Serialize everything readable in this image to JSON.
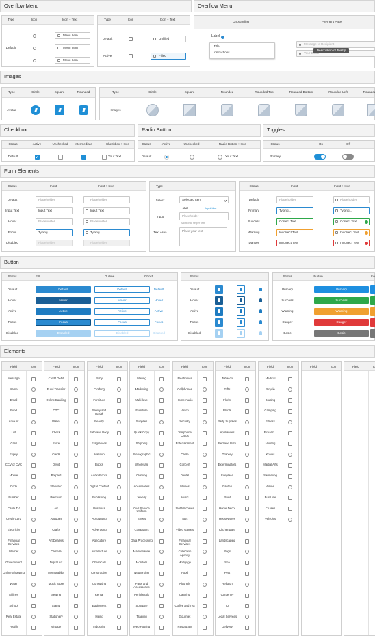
{
  "overflow_left": {
    "title": "Overflow Menu",
    "p1": {
      "headers": [
        "Type",
        "Icon",
        "Icon + Text"
      ],
      "row": "Default",
      "item": "Menu Item"
    },
    "p2": {
      "headers": [
        "Type",
        "Icon",
        "Icon + Text"
      ],
      "rows": [
        {
          "status": "Default",
          "text": "Unfilled"
        },
        {
          "status": "Active",
          "text": "Filled"
        }
      ]
    }
  },
  "overflow_right": {
    "title": "Overflow Menu",
    "headers": [
      "Onboarding",
      "Payment Page"
    ],
    "label": "Label",
    "menu": [
      "Title",
      "Instructions"
    ],
    "fields": [
      "Message to Recipient",
      "Your Email"
    ],
    "tooltip": "Description of Tooltip"
  },
  "images": {
    "title": "Images",
    "avatar": {
      "headers": [
        "Type",
        "Circle",
        "Square",
        "Rounded"
      ],
      "row": "Avatar"
    },
    "images": {
      "headers": [
        "Type",
        "Circle",
        "Square",
        "Rounded",
        "Rounded Top",
        "Rounded Bottom",
        "Rounded Left",
        "Rounded Right"
      ],
      "row": "Images"
    }
  },
  "checkbox": {
    "title": "Checkbox",
    "headers": [
      "Status",
      "Active",
      "Unchecked",
      "Intermediate",
      "Checkbox + Icon"
    ],
    "row": "Default",
    "text": "Your Text"
  },
  "radio": {
    "title": "Radio Button",
    "headers": [
      "Status",
      "Active",
      "Unchecked",
      "Radio Button + Icon"
    ],
    "row": "Default",
    "text": "Your Text"
  },
  "toggles": {
    "title": "Toggles",
    "headers": [
      "Status",
      "On",
      "Off"
    ],
    "row": "Primary"
  },
  "form": {
    "title": "Form Elements",
    "p1": {
      "headers": [
        "Status",
        "Input",
        "Input + Icon"
      ],
      "rows": [
        [
          "Default",
          "Placeholder"
        ],
        [
          "Input Text",
          "Input Text"
        ],
        [
          "Hover",
          "Placeholder"
        ],
        [
          "Focus",
          "Typing..."
        ],
        [
          "Disabled",
          "Placeholder"
        ]
      ]
    },
    "p2": {
      "header": "Type",
      "select": "Select",
      "selected": "Selected Item",
      "input": "Input",
      "label": "Label",
      "hint": "Input Hint",
      "placeholder": "Placeholder",
      "helper": "Additional helper text",
      "textarea": "Text Area",
      "textarea_ph": "Place your text"
    },
    "p3": {
      "headers": [
        "Status",
        "Input",
        "Input + Icon"
      ],
      "rows": [
        [
          "Default",
          "Placeholder"
        ],
        [
          "Primary",
          "Typing..."
        ],
        [
          "Success",
          "Correct Text"
        ],
        [
          "Warning",
          "Incorrect Text"
        ],
        [
          "Danger",
          "Incorrect Text"
        ]
      ]
    }
  },
  "button": {
    "title": "Button",
    "p1": {
      "headers": [
        "Status",
        "Fill",
        "Outline",
        "Ghost"
      ],
      "rows": [
        "Default",
        "Hover",
        "Active",
        "Focus",
        "Disabled"
      ]
    },
    "p2": {
      "header": "Status"
    },
    "p3": {
      "headers": [
        "Status",
        "Button",
        "Icon"
      ],
      "rows": [
        "Primary",
        "Success",
        "Warning",
        "Danger",
        "Basic"
      ]
    }
  },
  "elements": {
    "title": "Elements",
    "field_header": "Field",
    "icon_header": "Icon",
    "columns": [
      [
        "Message",
        "Name",
        "Email",
        "Fund",
        "Amount",
        "List",
        "Card",
        "Expiry",
        "CCV or CVC",
        "Mobile",
        "Code",
        "Number",
        "Cable TV",
        "Credit Card",
        "Electricity",
        "Financial Services",
        "Internet",
        "Government",
        "Online Shopping",
        "Water",
        "Airlines",
        "School",
        "Real Estate",
        "Health"
      ],
      [
        "Credit Debit",
        "Fund Transfer",
        "Online Banking",
        "OTC",
        "Wallet",
        "Check",
        "Store",
        "Credit",
        "Debit",
        "Prepaid",
        "Standard",
        "Premium",
        "Art",
        "Antiques",
        "Crafts",
        "Art Dealers",
        "Camera",
        "Digital Art",
        "Memorabilia",
        "Music Store",
        "Sewing",
        "Stamp",
        "Stationery",
        "Vintage"
      ],
      [
        "Baby",
        "Clothing",
        "Furniture",
        "Safety and Health",
        "Beauty",
        "Bath and Body",
        "Fragrances",
        "Makeup",
        "Books",
        "Audio Books",
        "Digital Content",
        "Publishing",
        "Business",
        "Accounting",
        "Advertising",
        "Agriculture",
        "Architecture",
        "Chemicals",
        "Construction",
        "Consulting",
        "Rental",
        "Equipment",
        "Hiring",
        "Industrial"
      ],
      [
        "Mailing",
        "Marketing",
        "Multi-level",
        "Furniture",
        "Supplies",
        "Quick Copy",
        "Shipping",
        "Stenographic",
        "Wholesale",
        "Clothing",
        "Accessories",
        "Jewelry",
        "Civil Service Uniform",
        "Shoes",
        "Computers",
        "Data Processing",
        "Maintenance",
        "Monitors",
        "Networking",
        "Parts and Accessories",
        "Peripherals",
        "Software",
        "Training",
        "Web Hosting"
      ],
      [
        "Electronics",
        "Cellphones",
        "Home Audio",
        "Vision",
        "Security",
        "Telephone Cards",
        "Entertainment",
        "Cable",
        "Concert",
        "Dental",
        "Movies",
        "Music",
        "Slot Machines",
        "Toys",
        "Video Games",
        "Financial Services",
        "Collection Agency",
        "Mortgage",
        "Food",
        "Alcohols",
        "Catering",
        "Coffee and Tea",
        "Gourmet",
        "Restaurant"
      ],
      [
        "Tobacco",
        "Gifts",
        "Florist",
        "Plants",
        "Party Supplies",
        "Appliances",
        "Bed and Bath",
        "Drapery",
        "Exterminators",
        "Fireplace",
        "Garden",
        "Paint",
        "Home Decor",
        "Housewares",
        "Kitchenware",
        "Landscaping",
        "Rugs",
        "Spa",
        "Pets",
        "Religion",
        "Carpentry",
        "ID",
        "Legal Services",
        "Delivery"
      ],
      [
        "Medical",
        "Bicycle",
        "Boating",
        "Camping",
        "Fitness",
        "Firearm...",
        "Hunting",
        "Knives",
        "Martial Arts",
        "Swimming",
        "Airline",
        "Bus Line",
        "Cruises",
        "Vehicles"
      ],
      [],
      []
    ]
  }
}
